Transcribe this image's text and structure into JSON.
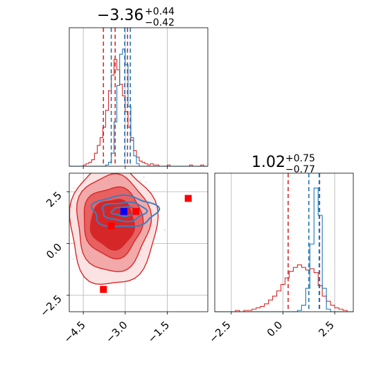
{
  "chart_data": [
    {
      "type": "histogram",
      "panel": "top-left",
      "title": {
        "median": "−3.36",
        "upper": "+0.44",
        "lower": "−0.42"
      },
      "xlim": [
        -5.0,
        -0.05
      ],
      "grid": true,
      "series": [
        {
          "color": "#d62728",
          "bin_edges": [
            -5.0,
            -4.9,
            -4.8,
            -4.7,
            -4.6,
            -4.5,
            -4.4,
            -4.3,
            -4.2,
            -4.1,
            -4.0,
            -3.9,
            -3.8,
            -3.7,
            -3.6,
            -3.5,
            -3.4,
            -3.3,
            -3.2,
            -3.1,
            -3.0,
            -2.9,
            -2.8,
            -2.7,
            -2.6,
            -2.5,
            -2.4,
            -2.3,
            -2.2,
            -2.1,
            -2.0,
            -1.9,
            -1.8,
            -1.7,
            -1.6,
            -1.5,
            -1.4,
            -1.3,
            -1.2,
            -1.1,
            -1.0,
            -0.9,
            -0.8,
            -0.7,
            -0.6,
            -0.5,
            -0.4,
            -0.3,
            -0.2,
            -0.1,
            -0.05
          ],
          "counts": [
            0,
            0,
            0,
            0,
            0,
            0.01,
            0.02,
            0.03,
            0.05,
            0.1,
            0.16,
            0.22,
            0.3,
            0.43,
            0.58,
            0.7,
            0.82,
            0.74,
            0.63,
            0.54,
            0.42,
            0.3,
            0.2,
            0.12,
            0.07,
            0.04,
            0.03,
            0.02,
            0.01,
            0.02,
            0.01,
            0.01,
            0,
            0,
            0,
            0.01,
            0,
            0,
            0,
            0,
            0,
            0,
            0,
            0.01,
            0,
            0,
            0,
            0.01,
            0,
            0
          ]
        },
        {
          "color": "#1f77b4",
          "bin_edges": [
            -5.0,
            -4.9,
            -4.8,
            -4.7,
            -4.6,
            -4.5,
            -4.4,
            -4.3,
            -4.2,
            -4.1,
            -4.0,
            -3.9,
            -3.8,
            -3.7,
            -3.6,
            -3.5,
            -3.4,
            -3.3,
            -3.2,
            -3.1,
            -3.0,
            -2.9,
            -2.8,
            -2.7,
            -2.6,
            -2.5,
            -2.4,
            -2.3,
            -2.2,
            -2.1,
            -2.0,
            -1.9,
            -1.8,
            -1.7,
            -1.6,
            -1.5,
            -1.4,
            -1.3,
            -1.2,
            -1.1,
            -1.0,
            -0.9,
            -0.8,
            -0.7,
            -0.6,
            -0.5,
            -0.4,
            -0.3,
            -0.2,
            -0.1,
            -0.05
          ],
          "counts": [
            0,
            0,
            0,
            0,
            0,
            0,
            0,
            0,
            0,
            0,
            0,
            0,
            0,
            0.01,
            0.03,
            0.1,
            0.34,
            0.62,
            0.86,
            0.9,
            0.78,
            0.46,
            0.22,
            0.08,
            0.02,
            0,
            0,
            0,
            0,
            0,
            0,
            0,
            0,
            0,
            0,
            0,
            0,
            0,
            0,
            0,
            0,
            0,
            0,
            0,
            0,
            0,
            0,
            0,
            0,
            0
          ]
        }
      ],
      "quantile_lines": [
        {
          "x": -3.78,
          "color": "#d62728"
        },
        {
          "x": -3.36,
          "color": "#d62728"
        },
        {
          "x": -2.92,
          "color": "#d62728"
        },
        {
          "x": -3.5,
          "color": "#1f77b4"
        },
        {
          "x": -3.02,
          "color": "#1f77b4"
        },
        {
          "x": -2.82,
          "color": "#1f77b4"
        }
      ],
      "xticks": [
        -4.5,
        -3.0,
        -1.5
      ]
    },
    {
      "type": "contour",
      "panel": "bottom-left",
      "xlim": [
        -5.0,
        -0.05
      ],
      "ylim": [
        -3.3,
        3.4
      ],
      "xticks": [
        -4.5,
        -3.0,
        -1.5
      ],
      "xtick_labels": [
        "−4.5",
        "−3.0",
        "−1.5"
      ],
      "yticks": [
        -2.5,
        0.0,
        2.5
      ],
      "ytick_labels": [
        "−2.5",
        "0.0",
        "2.5"
      ],
      "grid": true,
      "red_contours": [
        {
          "cx": -3.45,
          "cy": 0.9,
          "rx": 1.55,
          "ry": 2.95,
          "fill": "#fbe3e3"
        },
        {
          "cx": -3.45,
          "cy": 1.0,
          "rx": 1.3,
          "ry": 2.35,
          "fill": "#f2a9a9"
        },
        {
          "cx": -3.45,
          "cy": 1.05,
          "rx": 1.05,
          "ry": 1.7,
          "fill": "#e86060"
        },
        {
          "cx": -3.45,
          "cy": 0.95,
          "rx": 0.78,
          "ry": 1.2,
          "fill": "#d62728"
        }
      ],
      "blue_contours": [
        {
          "cx": -3.05,
          "cy": 1.55,
          "rx": 1.15,
          "ry": 0.75
        },
        {
          "cx": -3.05,
          "cy": 1.55,
          "rx": 0.78,
          "ry": 0.45
        },
        {
          "cx": -3.05,
          "cy": 1.55,
          "rx": 0.42,
          "ry": 0.22
        }
      ],
      "markers": [
        {
          "x": -3.78,
          "y": -2.22,
          "color": "#ff0000"
        },
        {
          "x": -3.5,
          "y": 0.85,
          "color": "#ff0000"
        },
        {
          "x": -2.62,
          "y": 1.55,
          "color": "#ff0000"
        },
        {
          "x": -0.75,
          "y": 2.18,
          "color": "#ff0000"
        },
        {
          "x": -3.05,
          "y": 1.55,
          "color": "#0000ff"
        }
      ]
    },
    {
      "type": "histogram",
      "panel": "bottom-right",
      "title": {
        "median": "1.02",
        "upper": "+0.75",
        "lower": "−0.77"
      },
      "xlim": [
        -3.3,
        3.4
      ],
      "grid": true,
      "series": [
        {
          "color": "#d62728",
          "bin_edges": [
            -3.3,
            -3.1,
            -2.9,
            -2.7,
            -2.5,
            -2.3,
            -2.1,
            -1.9,
            -1.7,
            -1.5,
            -1.3,
            -1.1,
            -0.9,
            -0.7,
            -0.5,
            -0.3,
            -0.1,
            0.1,
            0.3,
            0.5,
            0.7,
            0.9,
            1.1,
            1.3,
            1.5,
            1.7,
            1.9,
            2.1,
            2.3,
            2.5,
            2.7,
            2.9,
            3.1,
            3.3,
            3.4
          ],
          "counts": [
            0,
            0,
            0,
            0,
            0,
            0.01,
            0,
            0.01,
            0.01,
            0.02,
            0.03,
            0.04,
            0.06,
            0.09,
            0.12,
            0.16,
            0.21,
            0.26,
            0.31,
            0.34,
            0.36,
            0.34,
            0.32,
            0.33,
            0.3,
            0.2,
            0.12,
            0.08,
            0.05,
            0.03,
            0.02,
            0.01,
            0,
            0
          ]
        },
        {
          "color": "#1f77b4",
          "bin_edges": [
            -3.3,
            -3.1,
            -2.9,
            -2.7,
            -2.5,
            -2.3,
            -2.1,
            -1.9,
            -1.7,
            -1.5,
            -1.3,
            -1.1,
            -0.9,
            -0.7,
            -0.5,
            -0.3,
            -0.1,
            0.1,
            0.3,
            0.5,
            0.7,
            0.9,
            1.1,
            1.3,
            1.5,
            1.7,
            1.9,
            2.1,
            2.3,
            2.5,
            2.7,
            2.9,
            3.1,
            3.3,
            3.4
          ],
          "counts": [
            0,
            0,
            0,
            0,
            0,
            0,
            0,
            0,
            0,
            0,
            0,
            0,
            0,
            0,
            0,
            0,
            0,
            0,
            0,
            0,
            0.01,
            0.05,
            0.18,
            0.52,
            0.95,
            0.74,
            0.18,
            0.02,
            0,
            0,
            0,
            0,
            0,
            0
          ]
        }
      ],
      "quantile_lines": [
        {
          "x": 0.25,
          "color": "#d62728"
        },
        {
          "x": 1.77,
          "color": "#d62728"
        },
        {
          "x": 1.25,
          "color": "#1f77b4"
        },
        {
          "x": 1.75,
          "color": "#1f77b4"
        }
      ],
      "xticks": [
        -2.5,
        0.0,
        2.5
      ],
      "xtick_labels": [
        "−2.5",
        "0.0",
        "2.5"
      ]
    }
  ]
}
